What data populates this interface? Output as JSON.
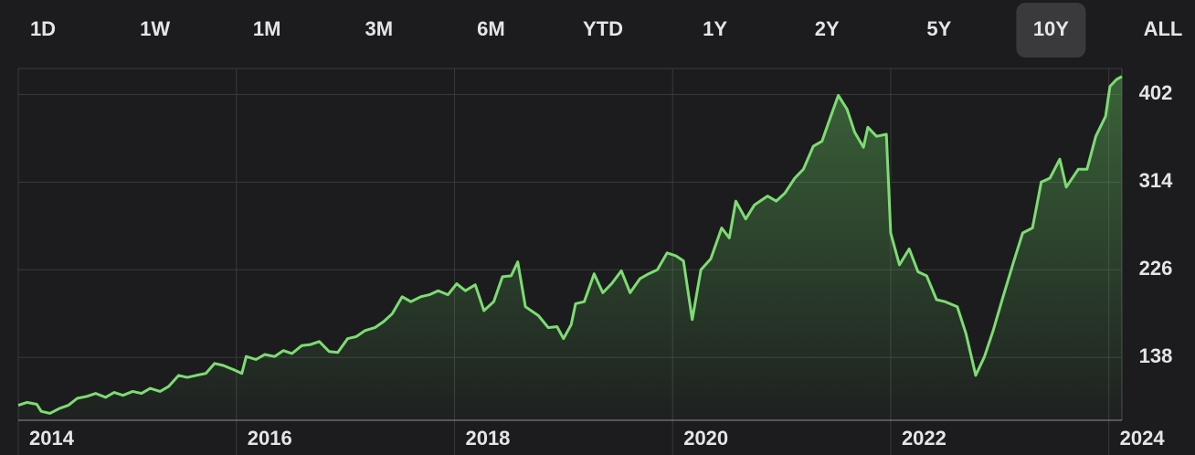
{
  "tabs": [
    "1D",
    "1W",
    "1M",
    "3M",
    "6M",
    "YTD",
    "1Y",
    "2Y",
    "5Y",
    "10Y",
    "ALL"
  ],
  "selected_tab": 9,
  "chart_data": {
    "type": "line",
    "x": [
      2014.0,
      2014.08,
      2014.17,
      2014.21,
      2014.29,
      2014.38,
      2014.46,
      2014.54,
      2014.63,
      2014.71,
      2014.8,
      2014.88,
      2014.96,
      2015.05,
      2015.13,
      2015.21,
      2015.3,
      2015.38,
      2015.47,
      2015.55,
      2015.63,
      2015.72,
      2015.8,
      2015.88,
      2015.97,
      2016.05,
      2016.09,
      2016.18,
      2016.26,
      2016.35,
      2016.43,
      2016.51,
      2016.6,
      2016.68,
      2016.76,
      2016.85,
      2016.93,
      2017.02,
      2017.1,
      2017.18,
      2017.27,
      2017.35,
      2017.43,
      2017.52,
      2017.6,
      2017.69,
      2017.77,
      2017.85,
      2017.94,
      2018.02,
      2018.1,
      2018.19,
      2018.27,
      2018.36,
      2018.44,
      2018.52,
      2018.58,
      2018.65,
      2018.77,
      2018.86,
      2018.94,
      2019.0,
      2019.07,
      2019.11,
      2019.19,
      2019.28,
      2019.36,
      2019.44,
      2019.53,
      2019.61,
      2019.7,
      2019.78,
      2019.86,
      2019.95,
      2020.03,
      2020.1,
      2020.18,
      2020.26,
      2020.35,
      2020.45,
      2020.52,
      2020.58,
      2020.67,
      2020.75,
      2020.87,
      2020.95,
      2021.03,
      2021.12,
      2021.2,
      2021.29,
      2021.37,
      2021.45,
      2021.52,
      2021.6,
      2021.67,
      2021.75,
      2021.79,
      2021.87,
      2021.96,
      2022.0,
      2022.08,
      2022.17,
      2022.25,
      2022.33,
      2022.42,
      2022.5,
      2022.61,
      2022.69,
      2022.78,
      2022.86,
      2022.94,
      2023.03,
      2023.13,
      2023.21,
      2023.3,
      2023.38,
      2023.46,
      2023.55,
      2023.61,
      2023.72,
      2023.8,
      2023.88,
      2023.97,
      2024.01,
      2024.07,
      2024.12
    ],
    "series": [
      {
        "color": "#7ddc72",
        "values": [
          90,
          93,
          91,
          84,
          82,
          87,
          90,
          97,
          99,
          102,
          98,
          103,
          100,
          104,
          102,
          107,
          104,
          109,
          120,
          118,
          120,
          122,
          132,
          130,
          126,
          122,
          139,
          136,
          141,
          139,
          145,
          142,
          150,
          151,
          154,
          144,
          143,
          157,
          159,
          165,
          168,
          174,
          182,
          199,
          194,
          199,
          201,
          205,
          201,
          212,
          205,
          211,
          185,
          194,
          219,
          220,
          234,
          189,
          180,
          168,
          169,
          157,
          171,
          192,
          194,
          222,
          203,
          212,
          225,
          203,
          217,
          222,
          226,
          243,
          240,
          235,
          176,
          226,
          237,
          268,
          258,
          295,
          277,
          291,
          300,
          295,
          303,
          318,
          327,
          350,
          355,
          380,
          401,
          387,
          364,
          349,
          369,
          360,
          362,
          263,
          231,
          247,
          224,
          220,
          196,
          194,
          189,
          162,
          120,
          139,
          165,
          199,
          235,
          263,
          268,
          314,
          318,
          337,
          309,
          327,
          327,
          360,
          380,
          410,
          417,
          420
        ]
      }
    ],
    "xlim": [
      2014,
      2024.12
    ],
    "xticks": [
      2014,
      2016,
      2018,
      2020,
      2022,
      2024
    ],
    "ylim": [
      75,
      428
    ],
    "yticks": [
      138,
      226,
      314,
      402
    ],
    "grid": true
  }
}
